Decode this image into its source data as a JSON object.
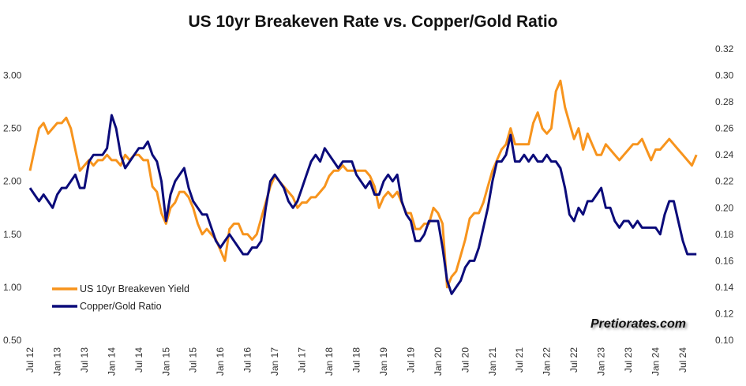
{
  "chart_data": {
    "type": "line",
    "title": "US 10yr Breakeven Rate vs. Copper/Gold Ratio",
    "start": "Jul 12",
    "frequency": "monthly",
    "x_tick_labels": [
      "Jul 12",
      "Jan 13",
      "Jul 13",
      "Jan 14",
      "Jul 14",
      "Jan 15",
      "Jul 15",
      "Jan 16",
      "Jul 16",
      "Jan 17",
      "Jul 17",
      "Jan 18",
      "Jul 18",
      "Jan 19",
      "Jul 19",
      "Jan 20",
      "Jul 20",
      "Jan 21",
      "Jul 21",
      "Jan 22",
      "Jul 22",
      "Jan 23",
      "Jul 23",
      "Jan 24",
      "Jul 24"
    ],
    "y_left": {
      "ticks": [
        "0.50",
        "1.00",
        "1.50",
        "2.00",
        "2.50",
        "3.00"
      ],
      "range": [
        0.5,
        3.25
      ]
    },
    "y_right": {
      "ticks": [
        "0.10",
        "0.12",
        "0.14",
        "0.16",
        "0.18",
        "0.20",
        "0.22",
        "0.24",
        "0.26",
        "0.28",
        "0.30",
        "0.32"
      ],
      "range": [
        0.1,
        0.32
      ]
    },
    "legend_position": "bottom-left",
    "series": [
      {
        "name": "US 10yr Breakeven Yield",
        "axis": "left",
        "color": "#F7941D",
        "values": [
          2.1,
          2.3,
          2.5,
          2.55,
          2.45,
          2.5,
          2.55,
          2.55,
          2.6,
          2.5,
          2.3,
          2.1,
          2.15,
          2.2,
          2.15,
          2.2,
          2.2,
          2.25,
          2.2,
          2.2,
          2.15,
          2.25,
          2.2,
          2.25,
          2.25,
          2.2,
          2.2,
          1.95,
          1.9,
          1.7,
          1.6,
          1.75,
          1.8,
          1.9,
          1.9,
          1.85,
          1.75,
          1.6,
          1.5,
          1.55,
          1.5,
          1.45,
          1.35,
          1.25,
          1.55,
          1.6,
          1.6,
          1.5,
          1.5,
          1.45,
          1.5,
          1.65,
          1.8,
          1.95,
          2.05,
          2.0,
          1.95,
          1.9,
          1.85,
          1.75,
          1.8,
          1.8,
          1.85,
          1.85,
          1.9,
          1.95,
          2.05,
          2.1,
          2.1,
          2.15,
          2.1,
          2.1,
          2.1,
          2.1,
          2.1,
          2.05,
          1.95,
          1.75,
          1.85,
          1.9,
          1.85,
          1.9,
          1.8,
          1.7,
          1.7,
          1.55,
          1.55,
          1.6,
          1.6,
          1.75,
          1.7,
          1.6,
          1.0,
          1.1,
          1.15,
          1.3,
          1.45,
          1.65,
          1.7,
          1.7,
          1.8,
          1.95,
          2.1,
          2.2,
          2.3,
          2.35,
          2.5,
          2.35,
          2.35,
          2.35,
          2.35,
          2.55,
          2.65,
          2.5,
          2.45,
          2.5,
          2.85,
          2.95,
          2.7,
          2.55,
          2.4,
          2.5,
          2.3,
          2.45,
          2.35,
          2.25,
          2.25,
          2.35,
          2.3,
          2.25,
          2.2,
          2.25,
          2.3,
          2.35,
          2.35,
          2.4,
          2.3,
          2.2,
          2.3,
          2.3,
          2.35,
          2.4,
          2.35,
          2.3,
          2.25,
          2.2,
          2.15,
          2.25
        ]
      },
      {
        "name": "Copper/Gold Ratio",
        "axis": "right",
        "color": "#0B0B7A",
        "values": [
          0.215,
          0.21,
          0.205,
          0.21,
          0.205,
          0.2,
          0.21,
          0.215,
          0.215,
          0.22,
          0.225,
          0.215,
          0.215,
          0.235,
          0.24,
          0.24,
          0.24,
          0.245,
          0.27,
          0.26,
          0.24,
          0.23,
          0.235,
          0.24,
          0.245,
          0.245,
          0.25,
          0.24,
          0.235,
          0.22,
          0.19,
          0.21,
          0.22,
          0.225,
          0.23,
          0.215,
          0.205,
          0.2,
          0.195,
          0.195,
          0.185,
          0.175,
          0.17,
          0.175,
          0.18,
          0.175,
          0.17,
          0.165,
          0.165,
          0.17,
          0.17,
          0.175,
          0.2,
          0.22,
          0.225,
          0.22,
          0.215,
          0.205,
          0.2,
          0.205,
          0.215,
          0.225,
          0.235,
          0.24,
          0.235,
          0.245,
          0.24,
          0.235,
          0.23,
          0.235,
          0.235,
          0.235,
          0.225,
          0.22,
          0.215,
          0.22,
          0.21,
          0.21,
          0.22,
          0.225,
          0.22,
          0.225,
          0.205,
          0.195,
          0.19,
          0.175,
          0.175,
          0.18,
          0.19,
          0.19,
          0.19,
          0.17,
          0.145,
          0.135,
          0.14,
          0.145,
          0.155,
          0.16,
          0.16,
          0.17,
          0.185,
          0.2,
          0.22,
          0.235,
          0.235,
          0.24,
          0.255,
          0.235,
          0.235,
          0.24,
          0.235,
          0.24,
          0.235,
          0.235,
          0.24,
          0.235,
          0.235,
          0.23,
          0.215,
          0.195,
          0.19,
          0.2,
          0.195,
          0.205,
          0.205,
          0.21,
          0.215,
          0.2,
          0.2,
          0.19,
          0.185,
          0.19,
          0.19,
          0.185,
          0.19,
          0.185,
          0.185,
          0.185,
          0.185,
          0.18,
          0.195,
          0.205,
          0.205,
          0.19,
          0.175,
          0.165,
          0.165,
          0.165
        ]
      }
    ],
    "watermark": "Pretiorates.com"
  }
}
